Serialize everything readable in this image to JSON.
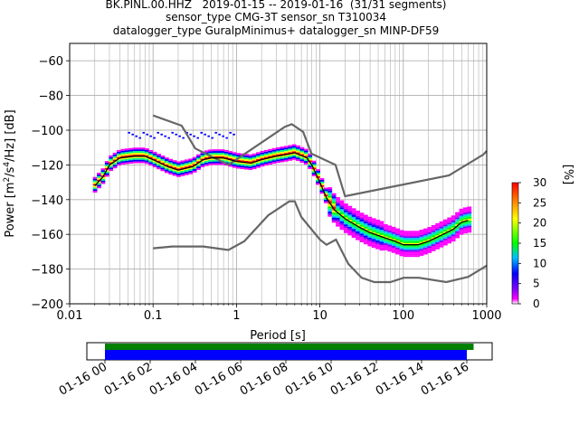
{
  "header": {
    "title_line1": "BK.PINL.00.HHZ   2019-01-15 -- 2019-01-16  (31/31 segments)",
    "title_line2": "sensor_type CMG-3T sensor_sn T310034",
    "title_line3": "datalogger_type GuralpMinimus+ datalogger_sn MINP-DF59"
  },
  "chart_data": [
    {
      "type": "heatmap",
      "xlabel": "Period [s]",
      "ylabel": "Power [m2/s4/Hz] [dB]",
      "xscale": "log",
      "xlim": [
        0.01,
        1000
      ],
      "ylim": [
        -200,
        -50
      ],
      "x_ticks": [
        "0.01",
        "0.1",
        "1",
        "10",
        "100",
        "1000"
      ],
      "y_ticks": [
        "−60",
        "−80",
        "−100",
        "−120",
        "−140",
        "−160",
        "−180",
        "−200"
      ],
      "grid": true,
      "colorbar": {
        "label": "[%]",
        "range": [
          0,
          30
        ],
        "ticks": [
          "0",
          "5",
          "10",
          "15",
          "20",
          "25",
          "30"
        ]
      },
      "mode_line": {
        "x": [
          0.02,
          0.025,
          0.03,
          0.04,
          0.06,
          0.08,
          0.1,
          0.15,
          0.2,
          0.3,
          0.4,
          0.5,
          0.7,
          1,
          1.5,
          2,
          3,
          4,
          5,
          7,
          8,
          10,
          12,
          15,
          20,
          30,
          40,
          60,
          80,
          100,
          150,
          200,
          300,
          400,
          500,
          600
        ],
        "y": [
          -132,
          -127,
          -120,
          -116,
          -115,
          -115,
          -117,
          -121,
          -123,
          -121,
          -117,
          -116,
          -116,
          -118,
          -119,
          -117,
          -115,
          -114,
          -113,
          -116,
          -120,
          -130,
          -139,
          -146,
          -151,
          -156,
          -159,
          -162,
          -164,
          -166,
          -166,
          -164,
          -160,
          -157,
          -153,
          -152
        ]
      },
      "noise_models": [
        {
          "x": [
            0.1,
            0.17,
            0.4,
            0.8,
            1.24,
            2.4,
            4.3,
            5,
            6,
            10,
            12,
            15.6,
            21.9,
            31.6,
            45,
            70,
            101,
            154,
            328,
            600,
            1000
          ],
          "y": [
            -168,
            -167,
            -167,
            -169,
            -164,
            -149,
            -141,
            -141,
            -150,
            -163,
            -166,
            -163,
            -177,
            -185,
            -187.5,
            -187.5,
            -185,
            -185,
            -187.5,
            -184.5,
            -178
          ]
        },
        {
          "x": [
            0.1,
            0.22,
            0.32,
            0.8,
            3.8,
            4.6,
            6.3,
            7.9,
            15.4,
            20,
            354,
            912,
            1000
          ],
          "y": [
            -91.5,
            -97.4,
            -110.5,
            -120,
            -98,
            -96.5,
            -101,
            -113.5,
            -120,
            -138,
            -126,
            -114,
            -112
          ]
        }
      ]
    }
  ],
  "timeline": {
    "ticks": [
      "01-16 00",
      "01-16 02",
      "01-16 04",
      "01-16 06",
      "01-16 08",
      "01-16 10",
      "01-16 12",
      "01-16 14",
      "01-16 16"
    ],
    "bars": [
      {
        "color": "#008000",
        "start_h": 0.0,
        "end_h": 16.3
      },
      {
        "color": "#0000ff",
        "start_h": 0.0,
        "end_h": 16.0
      }
    ]
  }
}
